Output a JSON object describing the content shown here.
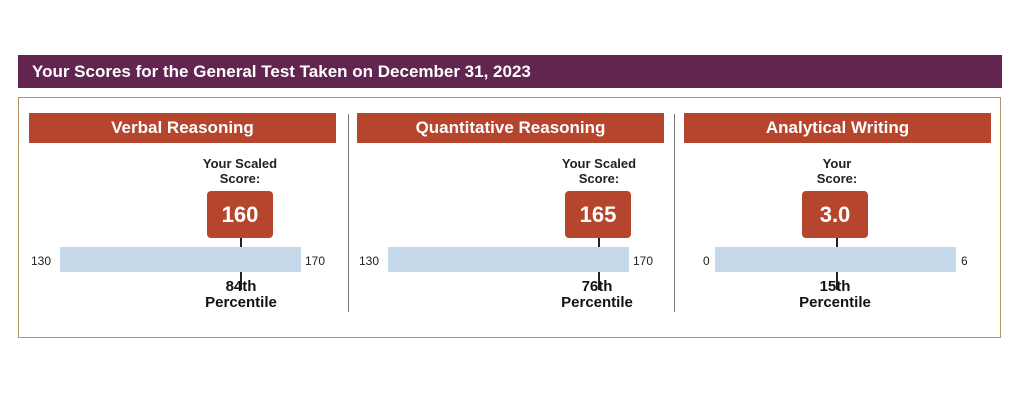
{
  "header": {
    "title": "Your Scores for the General Test Taken on December 31, 2023"
  },
  "sections": [
    {
      "name": "Verbal Reasoning",
      "caption_line1": "Your Scaled",
      "caption_line2": "Score:",
      "score": "160",
      "min_label": "130",
      "max_label": "170",
      "percentile_line1": "84th",
      "percentile_line2": "Percentile"
    },
    {
      "name": "Quantitative Reasoning",
      "caption_line1": "Your Scaled",
      "caption_line2": "Score:",
      "score": "165",
      "min_label": "130",
      "max_label": "170",
      "percentile_line1": "76th",
      "percentile_line2": "Percentile"
    },
    {
      "name": "Analytical Writing",
      "caption_line1": "Your",
      "caption_line2": "Score:",
      "score": "3.0",
      "min_label": "0",
      "max_label": "6",
      "percentile_line1": "15th",
      "percentile_line2": "Percentile"
    }
  ],
  "colors": {
    "header": "#62254f",
    "section_header": "#b5452d",
    "score_box": "#b5452d",
    "scale_bar": "#c5d9eb",
    "frame": "#b89363"
  }
}
